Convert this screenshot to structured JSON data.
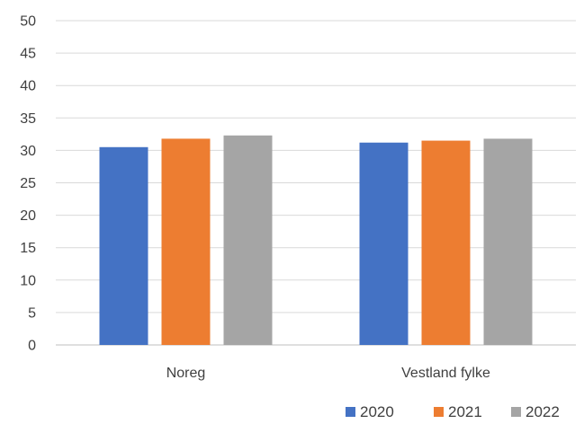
{
  "chart_data": {
    "type": "bar",
    "categories": [
      "Noreg",
      "Vestland fylke"
    ],
    "series": [
      {
        "name": "2020",
        "values": [
          30.5,
          31.2
        ],
        "color": "#4472C4"
      },
      {
        "name": "2021",
        "values": [
          31.8,
          31.5
        ],
        "color": "#ED7D31"
      },
      {
        "name": "2022",
        "values": [
          32.3,
          31.8
        ],
        "color": "#A5A5A5"
      }
    ],
    "ylim": [
      0,
      50
    ],
    "yticks": [
      0,
      5,
      10,
      15,
      20,
      25,
      30,
      35,
      40,
      45,
      50
    ],
    "grid": true,
    "legend": "bottom-right",
    "title": "",
    "xlabel": "",
    "ylabel": ""
  }
}
